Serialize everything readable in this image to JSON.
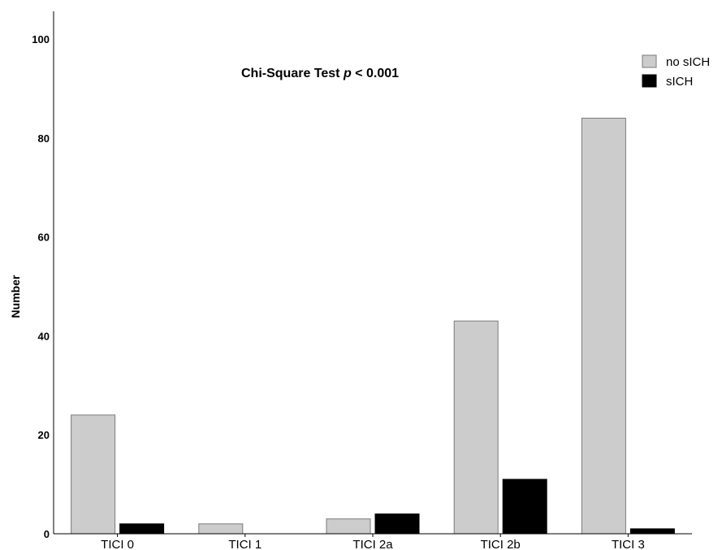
{
  "chart_data": {
    "type": "bar",
    "categories": [
      "TICI 0",
      "TICI 1",
      "TICI 2a",
      "TICI 2b",
      "TICI 3"
    ],
    "series": [
      {
        "name": "no sICH",
        "values": [
          24,
          2,
          3,
          43,
          84
        ],
        "color": "#cccccc"
      },
      {
        "name": "sICH",
        "values": [
          2,
          0,
          4,
          11,
          1
        ],
        "color": "#000000"
      }
    ],
    "ylabel": "Number",
    "xlabel": "",
    "ylim": [
      0,
      100
    ],
    "yticks": [
      0,
      20,
      40,
      60,
      80,
      100
    ],
    "annotation": {
      "prefix": "Chi-Square Test ",
      "italic": "p",
      "suffix": " < 0.001"
    },
    "legend_position": "top-right",
    "grid": false
  }
}
